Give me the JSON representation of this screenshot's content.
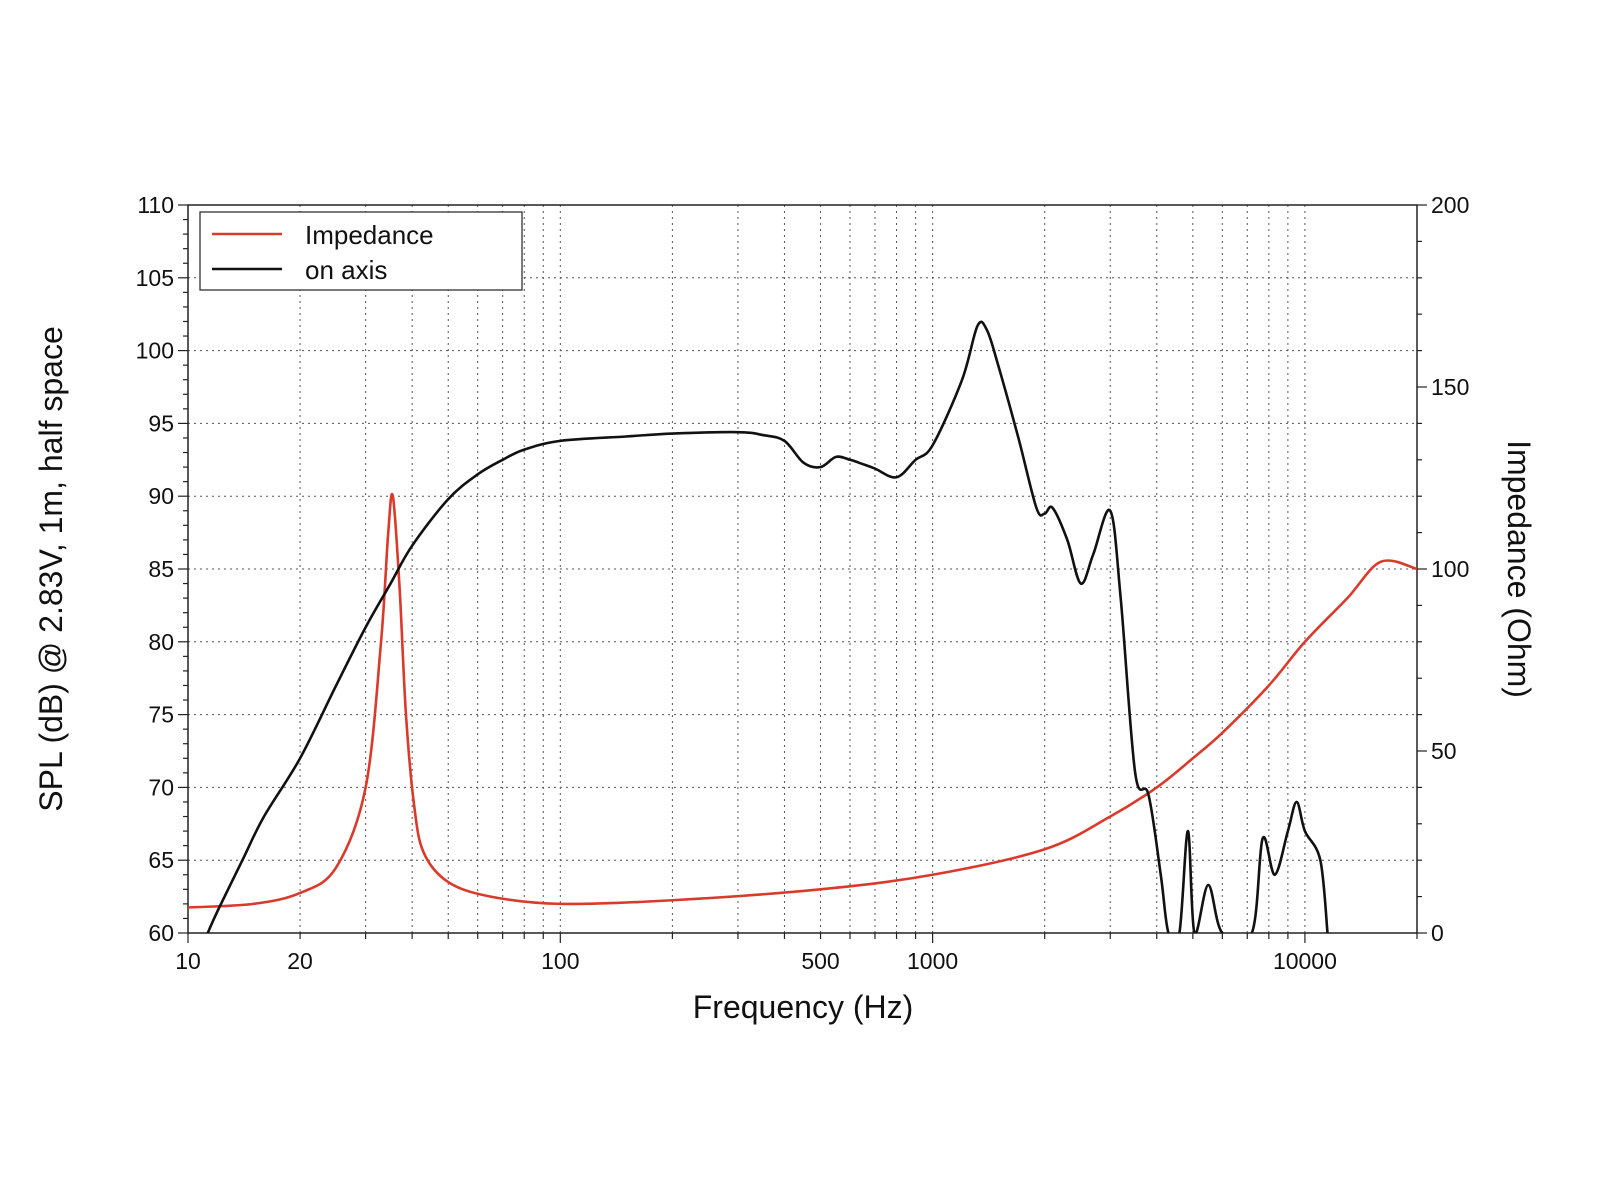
{
  "chart_data": {
    "type": "line",
    "title": "",
    "xlabel": "Frequency (Hz)",
    "ylabel": "SPL (dB) @ 2.83V, 1m, half space",
    "y2label": "Impedance (Ohm)",
    "xscale": "log",
    "xlim": [
      10,
      20000
    ],
    "ylim": [
      60,
      110
    ],
    "y2lim": [
      0,
      200
    ],
    "grid": true,
    "legend_position": "top-left",
    "x_tick_labels": [
      "10",
      "20",
      "100",
      "500",
      "1000",
      "10000"
    ],
    "x_tick_values": [
      10,
      20,
      100,
      500,
      1000,
      10000
    ],
    "y_tick_labels": [
      "60",
      "65",
      "70",
      "75",
      "80",
      "85",
      "90",
      "95",
      "100",
      "105",
      "110"
    ],
    "y2_tick_labels": [
      "0",
      "50",
      "100",
      "150",
      "200"
    ],
    "series": [
      {
        "name": "Impedance",
        "axis": "right",
        "color": "#d93a2b",
        "points": [
          [
            10,
            7
          ],
          [
            15,
            8
          ],
          [
            20,
            11
          ],
          [
            25,
            18
          ],
          [
            30,
            40
          ],
          [
            33,
            80
          ],
          [
            34.5,
            110
          ],
          [
            35.5,
            120
          ],
          [
            37,
            95
          ],
          [
            38.5,
            60
          ],
          [
            40.5,
            35
          ],
          [
            43,
            22
          ],
          [
            50,
            14
          ],
          [
            65,
            10
          ],
          [
            100,
            8
          ],
          [
            200,
            9
          ],
          [
            500,
            12
          ],
          [
            1000,
            16
          ],
          [
            2000,
            23
          ],
          [
            3000,
            32
          ],
          [
            4000,
            40
          ],
          [
            5000,
            48
          ],
          [
            6000,
            55
          ],
          [
            8000,
            68
          ],
          [
            10000,
            80
          ],
          [
            13000,
            92
          ],
          [
            16000,
            102
          ],
          [
            20000,
            100
          ]
        ]
      },
      {
        "name": "on axis",
        "axis": "left",
        "color": "#111111",
        "points": [
          [
            11.3,
            60
          ],
          [
            12,
            61.5
          ],
          [
            14,
            65
          ],
          [
            16,
            68
          ],
          [
            20,
            72
          ],
          [
            25,
            77
          ],
          [
            30,
            81
          ],
          [
            35,
            84
          ],
          [
            40,
            86.6
          ],
          [
            50,
            89.8
          ],
          [
            60,
            91.5
          ],
          [
            70,
            92.5
          ],
          [
            80,
            93.2
          ],
          [
            100,
            93.8
          ],
          [
            150,
            94.1
          ],
          [
            200,
            94.3
          ],
          [
            300,
            94.4
          ],
          [
            350,
            94.2
          ],
          [
            400,
            93.8
          ],
          [
            450,
            92.3
          ],
          [
            500,
            92
          ],
          [
            550,
            92.7
          ],
          [
            600,
            92.5
          ],
          [
            650,
            92.2
          ],
          [
            700,
            91.9
          ],
          [
            800,
            91.3
          ],
          [
            900,
            92.5
          ],
          [
            1000,
            93.5
          ],
          [
            1200,
            98
          ],
          [
            1320,
            101.7
          ],
          [
            1400,
            101.4
          ],
          [
            1500,
            99
          ],
          [
            1700,
            94
          ],
          [
            1900,
            89.2
          ],
          [
            2000,
            88.8
          ],
          [
            2100,
            89.2
          ],
          [
            2300,
            87
          ],
          [
            2500,
            84
          ],
          [
            2700,
            86
          ],
          [
            3000,
            89
          ],
          [
            3200,
            83
          ],
          [
            3500,
            71
          ],
          [
            3800,
            69.5
          ],
          [
            4100,
            64
          ],
          [
            4300,
            60
          ],
          [
            4600,
            60
          ],
          [
            4850,
            67
          ],
          [
            5050,
            60
          ],
          [
            5500,
            63.3
          ],
          [
            6000,
            60
          ],
          [
            7200,
            60
          ],
          [
            7700,
            66.5
          ],
          [
            8300,
            64
          ],
          [
            9000,
            67
          ],
          [
            9500,
            69
          ],
          [
            10000,
            67
          ],
          [
            11000,
            65
          ],
          [
            11500,
            60
          ]
        ]
      }
    ]
  }
}
